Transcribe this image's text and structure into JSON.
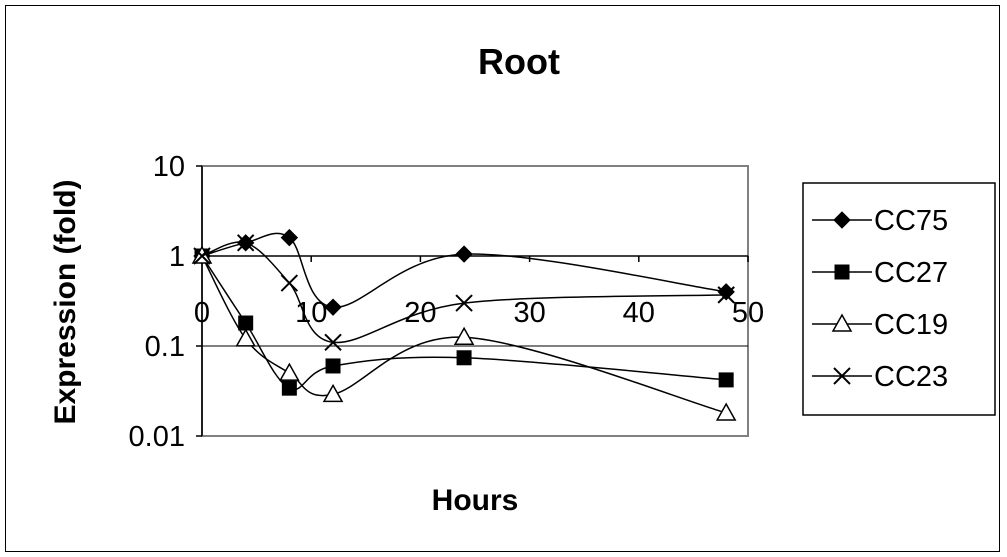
{
  "chart_data": {
    "type": "line",
    "title": "Root",
    "xlabel": "Hours",
    "ylabel": "Expression (fold)",
    "yscale": "log",
    "xlim": [
      0,
      50
    ],
    "ylim": [
      0.01,
      10
    ],
    "x_ticks": [
      "0",
      "10",
      "20",
      "30",
      "40",
      "50"
    ],
    "y_ticks": [
      "10",
      "1",
      "0.1",
      "0.01"
    ],
    "grid": "horizontal major gridlines",
    "legend_position": "right",
    "series": [
      {
        "name": "CC75",
        "marker": "diamond",
        "points": [
          [
            0,
            1.0
          ],
          [
            4,
            1.4
          ],
          [
            8,
            1.6
          ],
          [
            12,
            0.27
          ],
          [
            24,
            1.05
          ],
          [
            48,
            0.4
          ]
        ]
      },
      {
        "name": "CC27",
        "marker": "square",
        "points": [
          [
            0,
            1.0
          ],
          [
            4,
            0.18
          ],
          [
            8,
            0.034
          ],
          [
            12,
            0.06
          ],
          [
            24,
            0.074
          ],
          [
            48,
            0.042
          ]
        ]
      },
      {
        "name": "CC19",
        "marker": "triangle",
        "points": [
          [
            0,
            1.0
          ],
          [
            4,
            0.12
          ],
          [
            8,
            0.05
          ],
          [
            12,
            0.029
          ],
          [
            24,
            0.125
          ],
          [
            48,
            0.018
          ]
        ]
      },
      {
        "name": "CC23",
        "marker": "x",
        "points": [
          [
            0,
            1.0
          ],
          [
            4,
            1.4
          ],
          [
            8,
            0.5
          ],
          [
            12,
            0.11
          ],
          [
            24,
            0.3
          ],
          [
            48,
            0.37
          ]
        ]
      }
    ]
  }
}
